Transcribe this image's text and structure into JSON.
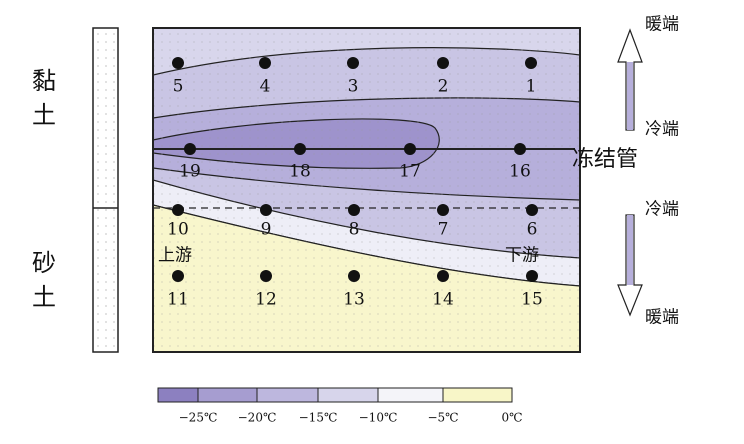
{
  "soil_labels": [
    "黏土",
    "砂土"
  ],
  "points": [
    "5",
    "4",
    "3",
    "2",
    "1",
    "19",
    "18",
    "17",
    "16",
    "10",
    "9",
    "8",
    "7",
    "6",
    "11",
    "12",
    "13",
    "14",
    "15"
  ],
  "annotations": {
    "upstream": "上游",
    "downstream": "下游",
    "pipe": "冻结管"
  },
  "arrows": {
    "up_top": "暖端",
    "up_bottom": "冷端",
    "down_top": "冷端",
    "down_bottom": "暖端"
  },
  "legend": {
    "labels": [
      "−25℃",
      "−20℃",
      "−15℃",
      "−10℃",
      "−5℃",
      "0℃"
    ]
  }
}
